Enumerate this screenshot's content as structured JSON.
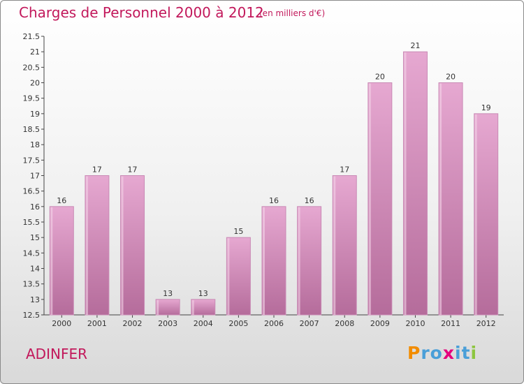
{
  "title": "Charges de Personnel 2000 à 2012",
  "subtitle": "(en milliers d'€)",
  "commune": "ADINFER",
  "logo": {
    "letters": [
      "P",
      "r",
      "o",
      "x",
      "i",
      "t",
      "i"
    ],
    "colors": [
      "#f28c00",
      "#4a9fd8",
      "#4a9fd8",
      "#e5007d",
      "#4a9fd8",
      "#4a9fd8",
      "#8dc63f"
    ]
  },
  "colors": {
    "title": "#c2185b",
    "bar_top": "#e6a8d1",
    "bar_bottom": "#b56c9b"
  },
  "chart_data": {
    "type": "bar",
    "categories": [
      "2000",
      "2001",
      "2002",
      "2003",
      "2004",
      "2005",
      "2006",
      "2007",
      "2008",
      "2009",
      "2010",
      "2011",
      "2012"
    ],
    "values": [
      16,
      17,
      17,
      13,
      13,
      15,
      16,
      16,
      17,
      20,
      21,
      20,
      19
    ],
    "value_labels": [
      "16",
      "17",
      "17",
      "13",
      "13",
      "15",
      "16",
      "16",
      "17",
      "20",
      "21",
      "20",
      "19"
    ],
    "y_ticks": [
      "12.5",
      "13",
      "13.5",
      "14",
      "14.5",
      "15",
      "15.5",
      "16",
      "16.5",
      "17",
      "17.5",
      "18",
      "18.5",
      "19",
      "19.5",
      "20",
      "20.5",
      "21",
      "21.5"
    ],
    "ylim": [
      12.5,
      21.5
    ],
    "grid": false
  }
}
